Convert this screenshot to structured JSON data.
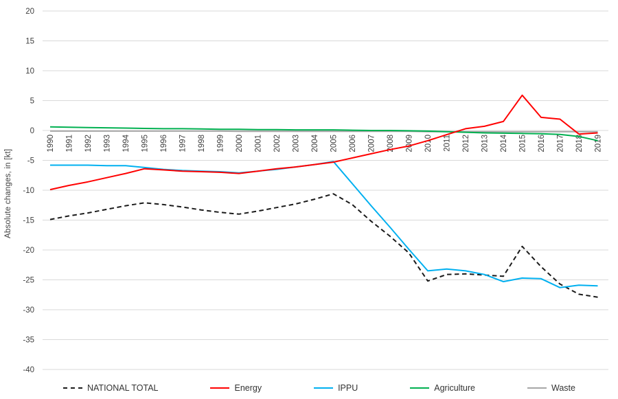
{
  "chart_data": {
    "type": "line",
    "title": "",
    "ylabel": "Absolute changes, in [kt]",
    "xlabel": "",
    "ylim": [
      -40,
      20
    ],
    "ytick_step": 5,
    "yticks": [
      20,
      15,
      10,
      5,
      0,
      -5,
      -10,
      -15,
      -20,
      -25,
      -30,
      -35,
      -40
    ],
    "grid": true,
    "gridline_color": "#d9d9d9",
    "tick_label_color": "#404040",
    "legend_position": "bottom",
    "categories": [
      "1990",
      "1991",
      "1992",
      "1993",
      "1994",
      "1995",
      "1996",
      "1997",
      "1998",
      "1999",
      "2000",
      "2001",
      "2002",
      "2003",
      "2004",
      "2005",
      "2006",
      "2007",
      "2008",
      "2009",
      "2010",
      "2011",
      "2012",
      "2013",
      "2014",
      "2015",
      "2016",
      "2017",
      "2018",
      "2019"
    ],
    "series": [
      {
        "name": "NATIONAL TOTAL",
        "color": "#1a1a1a",
        "dash": "dashed",
        "values": [
          -14.9,
          -14.3,
          -13.8,
          -13.2,
          -12.6,
          -12.1,
          -12.4,
          -12.8,
          -13.3,
          -13.7,
          -14.0,
          -13.5,
          -12.9,
          -12.3,
          -11.5,
          -10.6,
          -12.4,
          -15.2,
          -17.7,
          -20.5,
          -25.2,
          -24.1,
          -24.0,
          -24.2,
          -24.4,
          -19.4,
          -22.8,
          -25.7,
          -27.4,
          -27.9
        ]
      },
      {
        "name": "Energy",
        "color": "#ff0000",
        "dash": "solid",
        "values": [
          -9.9,
          -9.2,
          -8.6,
          -7.9,
          -7.2,
          -6.4,
          -6.6,
          -6.8,
          -6.9,
          -7.0,
          -7.2,
          -6.8,
          -6.4,
          -6.1,
          -5.7,
          -5.3,
          -4.6,
          -3.9,
          -3.2,
          -2.6,
          -1.7,
          -0.7,
          0.3,
          0.7,
          1.5,
          5.9,
          2.2,
          1.9,
          -0.6,
          -0.4
        ]
      },
      {
        "name": "IPPU",
        "color": "#00b0f0",
        "dash": "solid",
        "values": [
          -5.8,
          -5.8,
          -5.8,
          -5.9,
          -5.9,
          -6.2,
          -6.5,
          -6.7,
          -6.8,
          -6.9,
          -7.1,
          -6.8,
          -6.5,
          -6.1,
          -5.7,
          -5.2,
          -8.9,
          -12.6,
          -16.2,
          -19.9,
          -23.5,
          -23.2,
          -23.5,
          -24.1,
          -25.3,
          -24.7,
          -24.8,
          -26.3,
          -25.9,
          -26.0
        ]
      },
      {
        "name": "Agriculture",
        "color": "#00b050",
        "dash": "solid",
        "values": [
          0.6,
          0.55,
          0.5,
          0.45,
          0.4,
          0.35,
          0.3,
          0.3,
          0.25,
          0.2,
          0.2,
          0.15,
          0.15,
          0.1,
          0.1,
          0.1,
          0.05,
          0.0,
          0.0,
          -0.05,
          -0.1,
          -0.2,
          -0.3,
          -0.4,
          -0.45,
          -0.5,
          -0.55,
          -0.65,
          -1.0,
          -1.7
        ]
      },
      {
        "name": "Waste",
        "color": "#a6a6a6",
        "dash": "solid",
        "values": [
          -0.1,
          -0.1,
          -0.1,
          -0.1,
          -0.1,
          -0.1,
          -0.1,
          -0.1,
          -0.1,
          -0.1,
          -0.15,
          -0.15,
          -0.15,
          -0.15,
          -0.15,
          -0.15,
          -0.15,
          -0.15,
          -0.15,
          -0.15,
          -0.2,
          -0.2,
          -0.2,
          -0.2,
          -0.2,
          -0.2,
          -0.2,
          -0.2,
          -0.2,
          -0.2
        ]
      }
    ],
    "draw_order": [
      4,
      3,
      0,
      2,
      1
    ]
  }
}
